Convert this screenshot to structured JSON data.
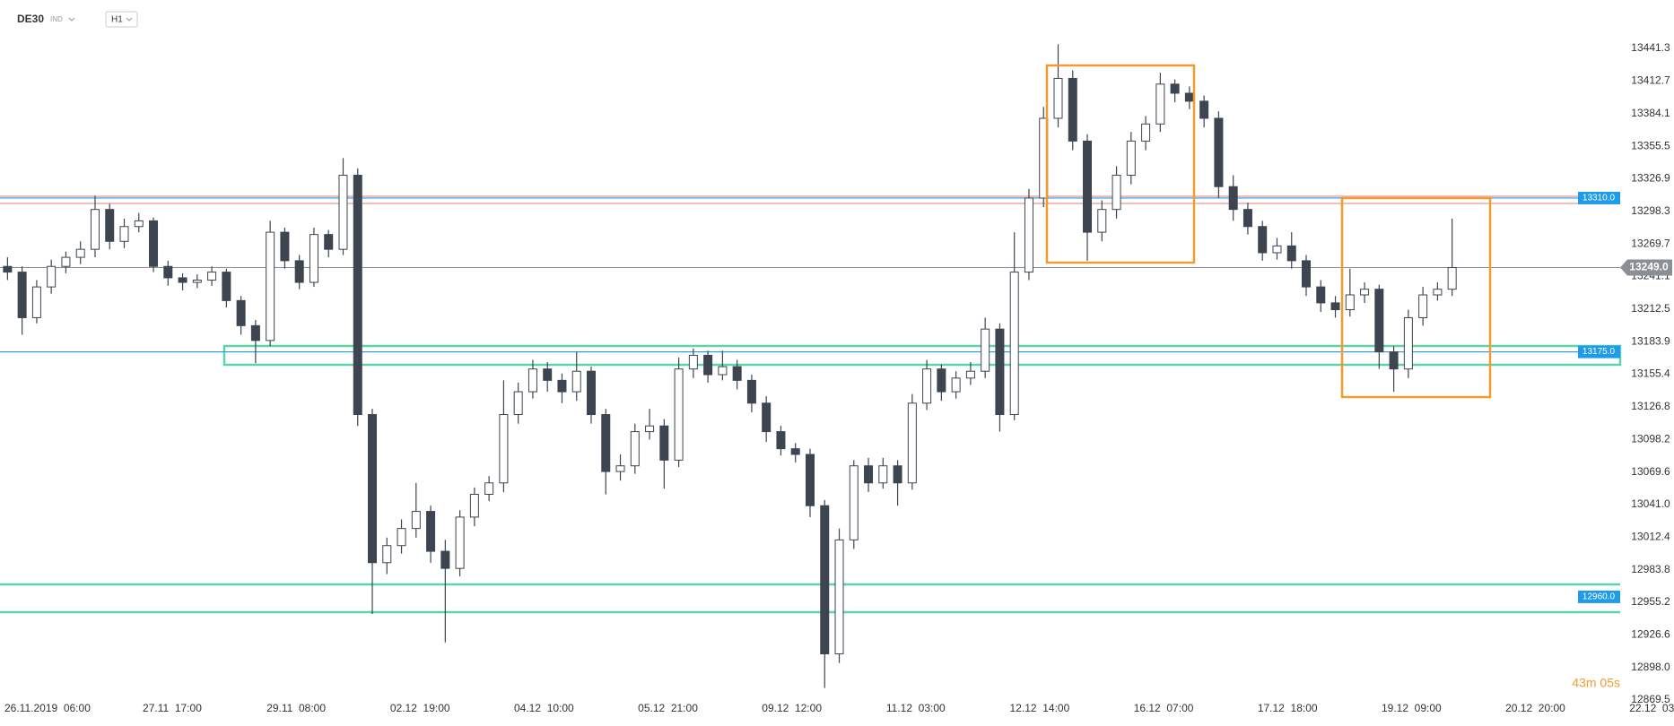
{
  "header": {
    "symbol": "DE30",
    "instrument_type": "IND",
    "timeframe": "H1"
  },
  "chart_data": {
    "type": "candlestick",
    "x_labels": [
      "26.11.2019  06:00",
      "27.11  17:00",
      "29.11  08:00",
      "02.12  19:00",
      "04.12  10:00",
      "05.12  21:00",
      "09.12  12:00",
      "11.12  03:00",
      "12.12  14:00",
      "16.12  07:00",
      "17.12  18:00",
      "19.12  09:00",
      "20.12  20:00",
      "22.12  03:00"
    ],
    "open": [
      13250,
      13245,
      13205,
      13232,
      13250,
      13258,
      13265,
      13300,
      13272,
      13285,
      13290,
      13250,
      13240,
      13236,
      13238,
      13245,
      13220,
      13198,
      13185,
      13280,
      13255,
      13236,
      13278,
      13265,
      13330,
      13120,
      12990,
      13005,
      13020,
      13035,
      13000,
      12985,
      13030,
      13050,
      13060,
      13120,
      13140,
      13160,
      13150,
      13140,
      13158,
      13120,
      13070,
      13075,
      13105,
      13110,
      13080,
      13160,
      13172,
      13155,
      13162,
      13150,
      13130,
      13105,
      13090,
      13085,
      13040,
      12910,
      13010,
      13075,
      13060,
      13075,
      13060,
      13130,
      13160,
      13140,
      13152,
      13158,
      13195,
      13120,
      13245,
      13310,
      13380,
      13415,
      13360,
      13280,
      13300,
      13330,
      13360,
      13375,
      13410,
      13402,
      13395,
      13380,
      13320,
      13300,
      13285,
      13262,
      13268,
      13255,
      13232,
      13218,
      13212,
      13225,
      13230,
      13175,
      13160,
      13205,
      13225,
      13230
    ],
    "high": [
      13258,
      13250,
      13238,
      13256,
      13263,
      13272,
      13312,
      13305,
      13292,
      13297,
      13293,
      13255,
      13244,
      13243,
      13250,
      13248,
      13224,
      13203,
      13290,
      13284,
      13260,
      13284,
      13282,
      13345,
      13336,
      13125,
      13012,
      13028,
      13060,
      13040,
      13010,
      13036,
      13056,
      13066,
      13150,
      13148,
      13168,
      13166,
      13156,
      13175,
      13162,
      13125,
      13085,
      13112,
      13125,
      13116,
      13170,
      13178,
      13176,
      13176,
      13168,
      13155,
      13136,
      13110,
      13095,
      13090,
      13045,
      13020,
      13080,
      13082,
      13082,
      13080,
      13138,
      13168,
      13164,
      13158,
      13166,
      13205,
      13200,
      13280,
      13318,
      13390,
      13445,
      13422,
      13366,
      13308,
      13338,
      13368,
      13382,
      13420,
      13414,
      13408,
      13400,
      13386,
      13330,
      13306,
      13290,
      13275,
      13280,
      13260,
      13238,
      13224,
      13248,
      13236,
      13234,
      13180,
      13212,
      13232,
      13236,
      13292
    ],
    "low": [
      13238,
      13190,
      13200,
      13226,
      13244,
      13252,
      13258,
      13265,
      13266,
      13280,
      13245,
      13233,
      13229,
      13231,
      13233,
      13214,
      13190,
      13165,
      13180,
      13248,
      13230,
      13232,
      13258,
      13260,
      13110,
      12945,
      12980,
      12998,
      13012,
      12990,
      12920,
      12978,
      13022,
      13044,
      13052,
      13112,
      13134,
      13140,
      13130,
      13132,
      13112,
      13050,
      13062,
      13068,
      13098,
      13055,
      13074,
      13152,
      13148,
      13150,
      13142,
      13122,
      13096,
      13084,
      13078,
      13030,
      12880,
      12902,
      13002,
      13052,
      13055,
      13040,
      13054,
      13124,
      13132,
      13134,
      13146,
      13152,
      13105,
      13115,
      13238,
      13302,
      13372,
      13352,
      13255,
      13272,
      13292,
      13322,
      13352,
      13368,
      13394,
      13388,
      13372,
      13310,
      13290,
      13278,
      13255,
      13256,
      13248,
      13224,
      13210,
      13205,
      13206,
      13218,
      13160,
      13140,
      13152,
      13198,
      13220,
      13224
    ],
    "close": [
      13245,
      13205,
      13232,
      13250,
      13258,
      13265,
      13300,
      13272,
      13285,
      13290,
      13250,
      13240,
      13236,
      13238,
      13245,
      13220,
      13198,
      13185,
      13280,
      13255,
      13236,
      13278,
      13265,
      13330,
      13120,
      12990,
      13005,
      13020,
      13035,
      13000,
      12985,
      13030,
      13050,
      13060,
      13120,
      13140,
      13160,
      13150,
      13140,
      13158,
      13120,
      13070,
      13075,
      13105,
      13110,
      13080,
      13160,
      13172,
      13155,
      13162,
      13150,
      13130,
      13105,
      13090,
      13085,
      13040,
      12910,
      13010,
      13075,
      13060,
      13075,
      13060,
      13130,
      13160,
      13140,
      13152,
      13158,
      13195,
      13120,
      13245,
      13310,
      13380,
      13415,
      13360,
      13280,
      13300,
      13330,
      13360,
      13375,
      13410,
      13402,
      13395,
      13380,
      13320,
      13300,
      13285,
      13262,
      13268,
      13255,
      13232,
      13218,
      13212,
      13225,
      13230,
      13175,
      13160,
      13205,
      13225,
      13230,
      13249
    ],
    "up_color": "#ffffff",
    "down_color": "#3d4550",
    "ylim": [
      12862.4,
      13483.8
    ],
    "yticks": [
      13441.3,
      13412.7,
      13384.1,
      13355.5,
      13326.9,
      13298.3,
      13269.7,
      13241.1,
      13212.5,
      13183.9,
      13155.4,
      13126.8,
      13098.2,
      13069.6,
      {
        "value": 13041,
        "label": "13041.0"
      },
      13012.4,
      12983.8,
      12955.2,
      12926.6,
      {
        "value": 12898,
        "label": "12898.0"
      },
      12869.5
    ],
    "levels": [
      {
        "value": 13310,
        "label": "13310.0",
        "color": "#1e9be9",
        "line": true
      },
      {
        "value": 13175,
        "label": "13175.0",
        "color": "#1e9be9",
        "line": true
      },
      {
        "value": 12960,
        "label": "12960.0",
        "color": "#1e9be9",
        "line": false
      }
    ],
    "current_price": {
      "value": 13249,
      "label": "13249.0",
      "color": "#8a8f96"
    },
    "countdown": "43m 05s"
  }
}
